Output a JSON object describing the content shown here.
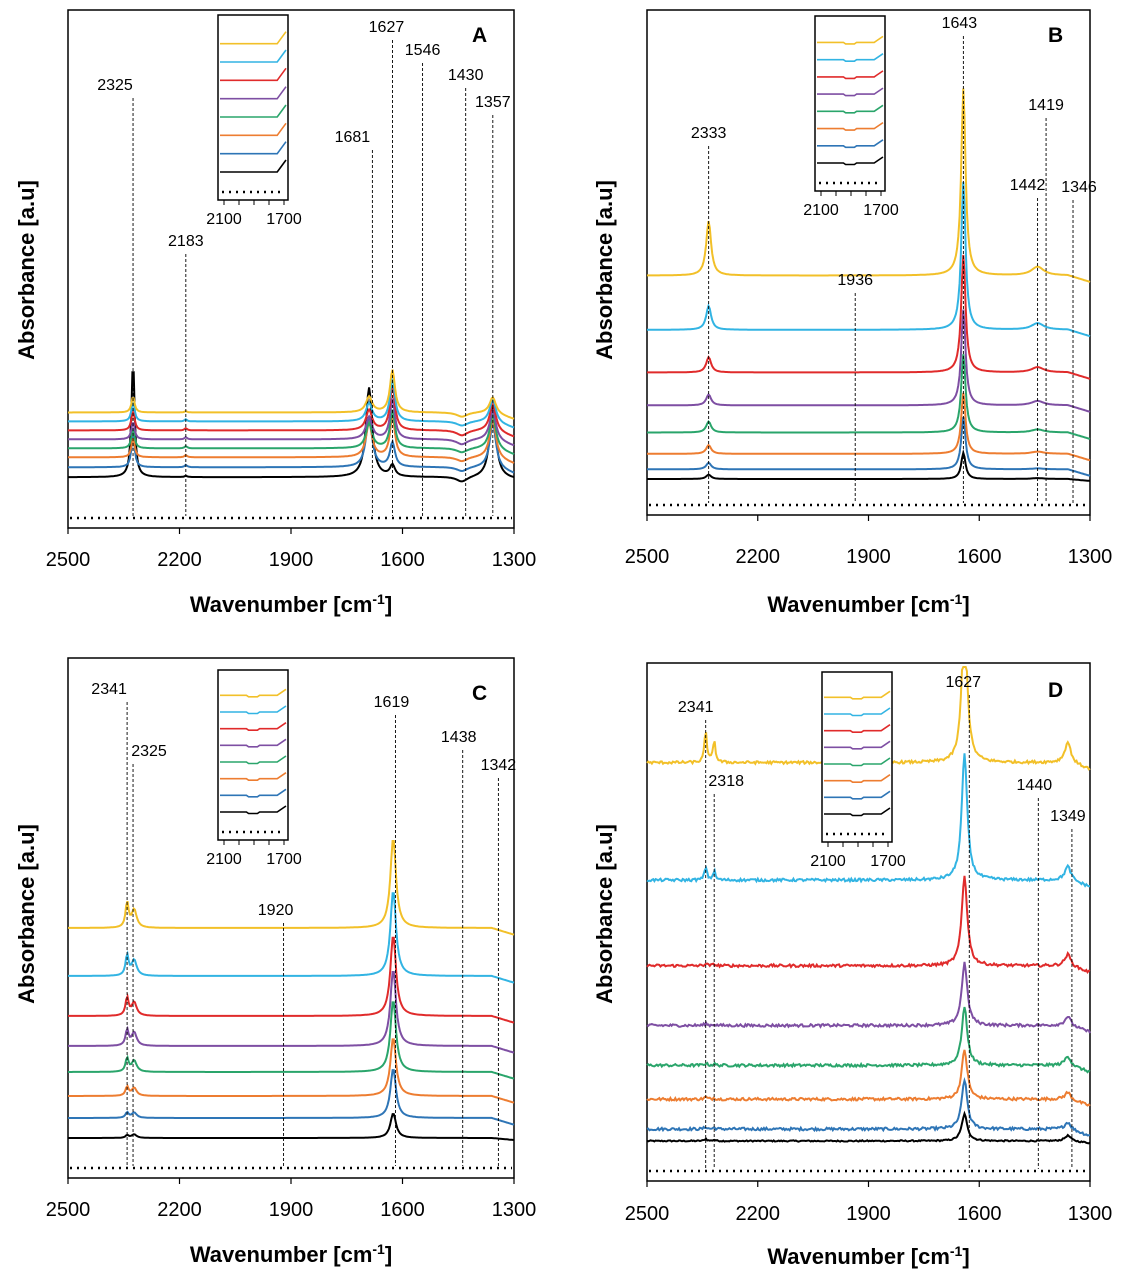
{
  "figure": {
    "x_title": "Wavenumber [cm",
    "x_title_sup": "-1",
    "x_title_end": "]",
    "y_title": "Absorbance [a.u]"
  },
  "series_colors": [
    "#000000",
    "#2e75b6",
    "#ed7d31",
    "#2aa56b",
    "#7e4fa3",
    "#e02b2b",
    "#32b4e3",
    "#f2c029"
  ],
  "reference_color": "#000000",
  "chart_data": [
    {
      "type": "line",
      "panel": "A",
      "xlim": [
        2500,
        1300
      ],
      "xticks": [
        "2500",
        "2200",
        "1900",
        "1600",
        "1300"
      ],
      "xlabel": "Wavenumber [cm-1]",
      "ylabel": "Absorbance [a.u]",
      "reference_baseline": "dotted",
      "peaks": [
        {
          "x": 2325,
          "label": "2325"
        },
        {
          "x": 2183,
          "label": "2183"
        },
        {
          "x": 1681,
          "label": "1681"
        },
        {
          "x": 1627,
          "label": "1627"
        },
        {
          "x": 1546,
          "label": "1546"
        },
        {
          "x": 1430,
          "label": "1430"
        },
        {
          "x": 1357,
          "label": "1357"
        }
      ],
      "baselines": [
        0.72,
        0.16,
        0.14,
        0.145,
        0.14,
        0.145,
        0.16,
        0.17
      ],
      "offsets": [
        0.0,
        0.1,
        0.1,
        0.09,
        0.09,
        0.09,
        0.09,
        0.09
      ],
      "bands": [
        {
          "x": 2325,
          "w": 5,
          "amps": [
            2.6,
            0.75,
            0.45,
            0.45,
            0.4,
            0.45,
            0.45,
            0.35
          ]
        },
        {
          "x": 2183,
          "w": 4,
          "amps": [
            0.03,
            0.05,
            0.05,
            0.05,
            0.05,
            0.05,
            0.05,
            0.03
          ]
        },
        {
          "x": 1690,
          "w": 10,
          "amps": [
            2.0,
            1.1,
            0.75,
            0.55,
            0.5,
            0.45,
            0.4,
            0.35
          ]
        },
        {
          "x": 1627,
          "w": 8,
          "amps": [
            0.25,
            0.55,
            0.9,
            0.85,
            0.9,
            1.0,
            0.95,
            0.95
          ]
        },
        {
          "x": 1440,
          "w": 18,
          "amps": [
            -0.12,
            -0.1,
            -0.1,
            -0.1,
            -0.12,
            -0.12,
            -0.1,
            -0.1
          ]
        },
        {
          "x": 1357,
          "w": 10,
          "amps": [
            1.6,
            1.0,
            0.85,
            0.75,
            0.65,
            0.6,
            0.5,
            0.35
          ]
        }
      ],
      "inset": {
        "xticks": [
          "2100",
          "1700"
        ]
      }
    },
    {
      "type": "line",
      "panel": "B",
      "xlim": [
        2500,
        1300
      ],
      "xticks": [
        "2500",
        "2200",
        "1900",
        "1600",
        "1300"
      ],
      "xlabel": "Wavenumber [cm-1]",
      "ylabel": "Absorbance [a.u]",
      "reference_baseline": "dotted",
      "peaks": [
        {
          "x": 2333,
          "label": "2333"
        },
        {
          "x": 1936,
          "label": "1936"
        },
        {
          "x": 1643,
          "label": "1643"
        },
        {
          "x": 1442,
          "label": "1442"
        },
        {
          "x": 1419,
          "label": "1419"
        },
        {
          "x": 1346,
          "label": "1346"
        }
      ],
      "baselines": [
        0.35,
        0.08,
        0.1,
        0.12,
        0.14,
        0.16,
        0.18,
        0.2
      ],
      "offsets": [
        0.0,
        0.1,
        0.16,
        0.22,
        0.28,
        0.34,
        0.44,
        0.56
      ],
      "bands": [
        {
          "x": 2333,
          "w": 8,
          "amps": [
            0.1,
            0.15,
            0.2,
            0.25,
            0.25,
            0.35,
            0.55,
            1.25
          ]
        },
        {
          "x": 1643,
          "w": 7,
          "amps": [
            0.6,
            1.2,
            1.4,
            1.8,
            2.2,
            2.7,
            3.4,
            4.3
          ]
        },
        {
          "x": 1442,
          "w": 20,
          "amps": [
            0.02,
            0.02,
            0.05,
            0.07,
            0.1,
            0.12,
            0.15,
            0.2
          ]
        }
      ],
      "inset": {
        "xticks": [
          "2100",
          "1700"
        ]
      }
    },
    {
      "type": "line",
      "panel": "C",
      "xlim": [
        2500,
        1300
      ],
      "xticks": [
        "2500",
        "2200",
        "1900",
        "1600",
        "1300"
      ],
      "xlabel": "Wavenumber [cm-1]",
      "ylabel": "Absorbance [a.u]",
      "reference_baseline": "dotted",
      "peaks": [
        {
          "x": 2341,
          "label": "2341"
        },
        {
          "x": 2325,
          "label": "2325"
        },
        {
          "x": 1920,
          "label": "1920"
        },
        {
          "x": 1619,
          "label": "1619"
        },
        {
          "x": 1438,
          "label": "1438"
        },
        {
          "x": 1342,
          "label": "1342"
        }
      ],
      "baselines": [
        0.45,
        0.12,
        0.12,
        0.12,
        0.12,
        0.12,
        0.12,
        0.12
      ],
      "offsets": [
        0.0,
        0.2,
        0.22,
        0.24,
        0.26,
        0.3,
        0.4,
        0.48
      ],
      "bands": [
        {
          "x": 2341,
          "w": 5,
          "amps": [
            0.06,
            0.12,
            0.2,
            0.3,
            0.35,
            0.4,
            0.45,
            0.55
          ]
        },
        {
          "x": 2322,
          "w": 8,
          "amps": [
            0.08,
            0.12,
            0.18,
            0.25,
            0.3,
            0.3,
            0.35,
            0.4
          ]
        },
        {
          "x": 1625,
          "w": 9,
          "amps": [
            0.55,
            1.1,
            1.3,
            1.6,
            1.7,
            1.8,
            1.9,
            2.0
          ]
        }
      ],
      "inset": {
        "xticks": [
          "2100",
          "1700"
        ]
      }
    },
    {
      "type": "line",
      "panel": "D",
      "xlim": [
        2500,
        1300
      ],
      "xticks": [
        "2500",
        "2200",
        "1900",
        "1600",
        "1300"
      ],
      "xlabel": "Wavenumber [cm-1]",
      "ylabel": "Absorbance [a.u]",
      "reference_baseline": "dotted",
      "peaks": [
        {
          "x": 2341,
          "label": "2341"
        },
        {
          "x": 2318,
          "label": "2318"
        },
        {
          "x": 1627,
          "label": "1627"
        },
        {
          "x": 1440,
          "label": "1440"
        },
        {
          "x": 1349,
          "label": "1349"
        }
      ],
      "baselines": [
        0.45,
        0.12,
        0.12,
        0.12,
        0.12,
        0.12,
        0.12,
        0.12
      ],
      "offsets": [
        0.0,
        0.12,
        0.3,
        0.34,
        0.4,
        0.6,
        0.86,
        1.18
      ],
      "bands": [
        {
          "x": 2341,
          "w": 4,
          "amps": [
            0.05,
            0.05,
            0.05,
            0.05,
            0.05,
            0.05,
            0.3,
            0.7
          ]
        },
        {
          "x": 2318,
          "w": 4,
          "amps": [
            0.03,
            0.03,
            0.03,
            0.03,
            0.03,
            0.03,
            0.2,
            0.5
          ]
        },
        {
          "x": 1640,
          "w": 9,
          "amps": [
            0.6,
            1.1,
            1.1,
            1.3,
            1.4,
            2.0,
            2.8,
            3.2
          ]
        },
        {
          "x": 1360,
          "w": 10,
          "amps": [
            0.12,
            0.15,
            0.15,
            0.2,
            0.2,
            0.25,
            0.3,
            0.45
          ]
        }
      ],
      "noise": true,
      "inset": {
        "xticks": [
          "2100",
          "1700"
        ]
      }
    }
  ]
}
